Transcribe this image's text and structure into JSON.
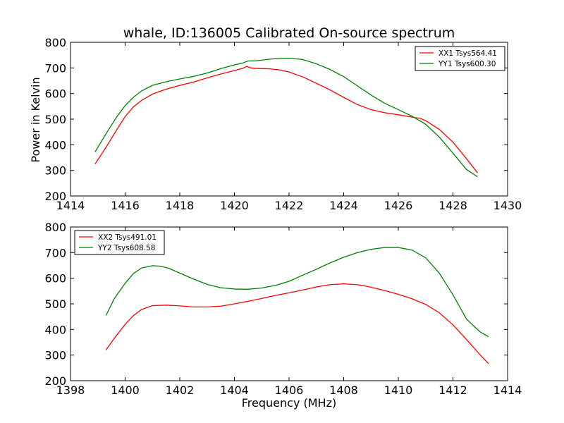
{
  "figure": {
    "title": "whale, ID:136005 Calibrated On-source spectrum",
    "ylabel": "Power in Kelvin",
    "xlabel": "Frequency (MHz)"
  },
  "chart_data": [
    {
      "type": "line",
      "title": "whale, ID:136005 Calibrated On-source spectrum",
      "xlabel": "",
      "ylabel": "Power in Kelvin",
      "xlim": [
        1414,
        1430
      ],
      "ylim": [
        200,
        800
      ],
      "xticks": [
        1414,
        1416,
        1418,
        1420,
        1422,
        1424,
        1426,
        1428,
        1430
      ],
      "yticks": [
        200,
        300,
        400,
        500,
        600,
        700,
        800
      ],
      "legend_position": "top-right",
      "series": [
        {
          "name": "XX1 Tsys564.41",
          "color": "#ff0000",
          "x": [
            1414.9,
            1415.3,
            1415.7,
            1416.0,
            1416.3,
            1416.6,
            1417.0,
            1417.5,
            1418.0,
            1418.5,
            1419.0,
            1419.5,
            1420.0,
            1420.3,
            1420.45,
            1420.6,
            1420.8,
            1421.2,
            1421.6,
            1422.0,
            1422.5,
            1423.0,
            1423.5,
            1424.0,
            1424.5,
            1425.0,
            1425.5,
            1426.0,
            1426.5,
            1426.8,
            1427.0,
            1427.5,
            1428.0,
            1428.5,
            1428.9
          ],
          "y": [
            325,
            390,
            460,
            510,
            548,
            573,
            598,
            617,
            632,
            645,
            661,
            676,
            690,
            698,
            706,
            700,
            698,
            697,
            693,
            684,
            665,
            640,
            614,
            585,
            557,
            537,
            525,
            517,
            508,
            503,
            494,
            460,
            410,
            345,
            290
          ]
        },
        {
          "name": "YY1 Tsys600.30",
          "color": "#008000",
          "x": [
            1414.9,
            1415.3,
            1415.7,
            1416.0,
            1416.3,
            1416.6,
            1417.0,
            1417.5,
            1418.0,
            1418.5,
            1419.0,
            1419.5,
            1420.0,
            1420.3,
            1420.5,
            1420.8,
            1421.2,
            1421.6,
            1422.0,
            1422.5,
            1423.0,
            1423.5,
            1424.0,
            1424.5,
            1425.0,
            1425.5,
            1426.0,
            1426.5,
            1427.0,
            1427.5,
            1428.0,
            1428.5,
            1428.9
          ],
          "y": [
            372,
            443,
            510,
            553,
            585,
            610,
            632,
            646,
            657,
            667,
            680,
            697,
            712,
            719,
            727,
            728,
            733,
            737,
            738,
            733,
            716,
            694,
            666,
            630,
            594,
            562,
            537,
            512,
            480,
            430,
            367,
            303,
            275
          ]
        }
      ]
    },
    {
      "type": "line",
      "title": "",
      "xlabel": "Frequency (MHz)",
      "ylabel": "",
      "xlim": [
        1398,
        1414
      ],
      "ylim": [
        200,
        800
      ],
      "xticks": [
        1398,
        1400,
        1402,
        1404,
        1406,
        1408,
        1410,
        1412,
        1414
      ],
      "yticks": [
        200,
        300,
        400,
        500,
        600,
        700,
        800
      ],
      "legend_position": "top-left",
      "series": [
        {
          "name": "XX2 Tsys491.01",
          "color": "#ff0000",
          "x": [
            1399.3,
            1399.6,
            1400.0,
            1400.3,
            1400.6,
            1401.0,
            1401.5,
            1402.0,
            1402.5,
            1403.0,
            1403.5,
            1404.0,
            1404.5,
            1405.0,
            1405.5,
            1406.0,
            1406.5,
            1407.0,
            1407.5,
            1408.0,
            1408.5,
            1409.0,
            1409.5,
            1410.0,
            1410.5,
            1411.0,
            1411.5,
            1412.0,
            1412.5,
            1413.0,
            1413.3
          ],
          "y": [
            320,
            365,
            420,
            454,
            478,
            493,
            495,
            492,
            488,
            488,
            491,
            500,
            510,
            521,
            533,
            543,
            554,
            566,
            575,
            578,
            575,
            565,
            552,
            537,
            520,
            498,
            465,
            418,
            360,
            300,
            267
          ]
        },
        {
          "name": "YY2 Tsys608.58",
          "color": "#008000",
          "x": [
            1399.3,
            1399.6,
            1400.0,
            1400.3,
            1400.6,
            1401.0,
            1401.3,
            1401.6,
            1402.0,
            1402.5,
            1403.0,
            1403.5,
            1404.0,
            1404.5,
            1405.0,
            1405.5,
            1406.0,
            1406.5,
            1407.0,
            1407.5,
            1408.0,
            1408.5,
            1409.0,
            1409.5,
            1410.0,
            1410.5,
            1411.0,
            1411.5,
            1412.0,
            1412.5,
            1413.0,
            1413.3
          ],
          "y": [
            455,
            520,
            580,
            618,
            640,
            649,
            647,
            639,
            620,
            597,
            576,
            563,
            558,
            557,
            562,
            572,
            588,
            612,
            635,
            660,
            682,
            700,
            713,
            720,
            720,
            710,
            680,
            620,
            535,
            440,
            390,
            372
          ]
        }
      ]
    }
  ]
}
